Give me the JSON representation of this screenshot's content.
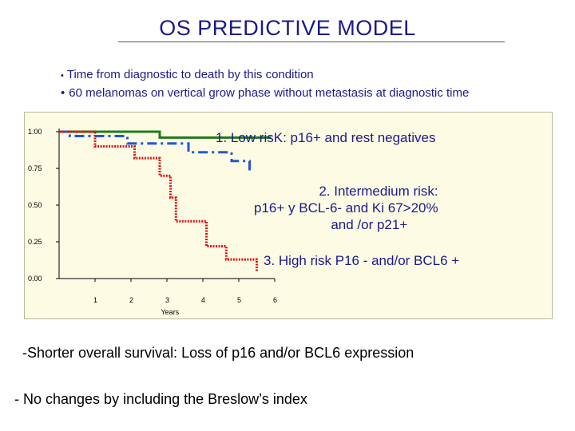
{
  "title": "OS PREDICTIVE MODEL",
  "bullets": [
    "Time from diagnostic to death by this condition",
    "60 melanomas on vertical grow phase without metastasis at diagnostic time"
  ],
  "annotations": {
    "low": "1. Low risK: p16+ and rest negatives",
    "intermediate_line1": "2. Intermedium risk:",
    "intermediate_line2": "p16+ y  BCL-6- and Ki 67>20%",
    "intermediate_line3": "and /or  p21+",
    "high": "3. High risk  P16 - and/or BCL6 +"
  },
  "findings": [
    "-Shorter overall survival: Loss of p16 and/or BCL6 expression",
    "- No changes by including the Breslow’s index"
  ],
  "colors": {
    "title": "#1a1a8c",
    "chart_background": "#fdfbe3",
    "low_risk": "#1e7b1e",
    "intermediate_risk": "#2255dd",
    "high_risk": "#dd1111"
  },
  "chart_data": {
    "type": "line",
    "step": true,
    "xlabel": "Years",
    "ylabel": "",
    "xlim": [
      0,
      6
    ],
    "ylim": [
      0,
      1
    ],
    "x_ticks": [
      "1",
      "2",
      "3",
      "4",
      "5",
      "6"
    ],
    "y_ticks": [
      "0.00",
      "0.25",
      "0.50",
      "0.75",
      "1.00"
    ],
    "grid": false,
    "series": [
      {
        "name": "1. Low risK",
        "style": "solid",
        "color": "#1e7b1e",
        "points": [
          [
            0,
            1.0
          ],
          [
            2.8,
            1.0
          ],
          [
            2.8,
            0.96
          ],
          [
            5.9,
            0.96
          ]
        ]
      },
      {
        "name": "2. Intermedium risk",
        "style": "dashdot",
        "color": "#2255dd",
        "points": [
          [
            0,
            1.0
          ],
          [
            0.3,
            1.0
          ],
          [
            0.3,
            0.97
          ],
          [
            1.9,
            0.97
          ],
          [
            1.9,
            0.92
          ],
          [
            3.6,
            0.92
          ],
          [
            3.6,
            0.86
          ],
          [
            4.8,
            0.86
          ],
          [
            4.8,
            0.8
          ],
          [
            5.3,
            0.8
          ],
          [
            5.3,
            0.71
          ]
        ]
      },
      {
        "name": "3. High risk",
        "style": "dotted",
        "color": "#dd1111",
        "points": [
          [
            0,
            1.0
          ],
          [
            1.0,
            1.0
          ],
          [
            1.0,
            0.9
          ],
          [
            2.1,
            0.9
          ],
          [
            2.1,
            0.82
          ],
          [
            2.8,
            0.82
          ],
          [
            2.8,
            0.7
          ],
          [
            3.1,
            0.7
          ],
          [
            3.1,
            0.55
          ],
          [
            3.25,
            0.55
          ],
          [
            3.25,
            0.39
          ],
          [
            4.1,
            0.39
          ],
          [
            4.1,
            0.22
          ],
          [
            4.65,
            0.22
          ],
          [
            4.65,
            0.13
          ],
          [
            5.5,
            0.13
          ],
          [
            5.5,
            0.05
          ]
        ]
      }
    ]
  }
}
